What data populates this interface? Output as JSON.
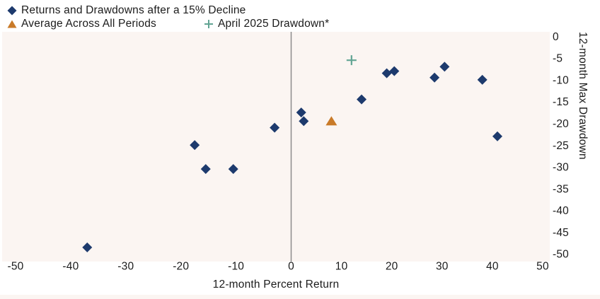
{
  "legend": {
    "position": "top-left",
    "items": [
      {
        "id": "returns",
        "marker": "diamond",
        "color": "#1d3a6d",
        "label": "Returns and Drawdowns after a 15% Decline"
      },
      {
        "id": "average",
        "marker": "triangle",
        "color": "#c97a28",
        "label": "Average Across All Periods"
      },
      {
        "id": "april",
        "marker": "plus",
        "color": "#61a493",
        "label": "April 2025 Drawdown*"
      }
    ]
  },
  "chart_data": {
    "type": "scatter",
    "xlabel": "12-month Percent Return",
    "ylabel": "12-month Max Drawdown",
    "xlim": [
      -50,
      50
    ],
    "ylim": [
      -50,
      0
    ],
    "x_ticks": [
      -50,
      -40,
      -30,
      -20,
      -10,
      0,
      10,
      20,
      30,
      40,
      50
    ],
    "y_ticks": [
      0,
      -5,
      -10,
      -15,
      -20,
      -25,
      -30,
      -35,
      -40,
      -45,
      -50
    ],
    "grid": false,
    "zero_line_x": 0,
    "legend_position": "top-left",
    "series": [
      {
        "name": "Returns and Drawdowns after a 15% Decline",
        "marker": "diamond",
        "color": "#1d3a6d",
        "points": [
          [
            -37,
            -48.5
          ],
          [
            -17.5,
            -25
          ],
          [
            -15.5,
            -30.5
          ],
          [
            -10.5,
            -30.5
          ],
          [
            -3,
            -21
          ],
          [
            2,
            -17.5
          ],
          [
            2.5,
            -19.5
          ],
          [
            14,
            -14.5
          ],
          [
            19,
            -8.5
          ],
          [
            20.5,
            -8
          ],
          [
            28.5,
            -9.5
          ],
          [
            30.5,
            -7
          ],
          [
            38,
            -10
          ],
          [
            41,
            -23
          ]
        ]
      },
      {
        "name": "Average Across All Periods",
        "marker": "triangle",
        "color": "#c97a28",
        "points": [
          [
            8,
            -19.5
          ]
        ]
      },
      {
        "name": "April 2025 Drawdown*",
        "marker": "plus",
        "color": "#61a493",
        "points": [
          [
            12,
            -5.5
          ]
        ]
      }
    ]
  },
  "colors": {
    "plot_background": "#fbf5f2",
    "zero_line": "#8c8c8c",
    "text": "#1b1b1b",
    "page_background": "#ffffff"
  }
}
